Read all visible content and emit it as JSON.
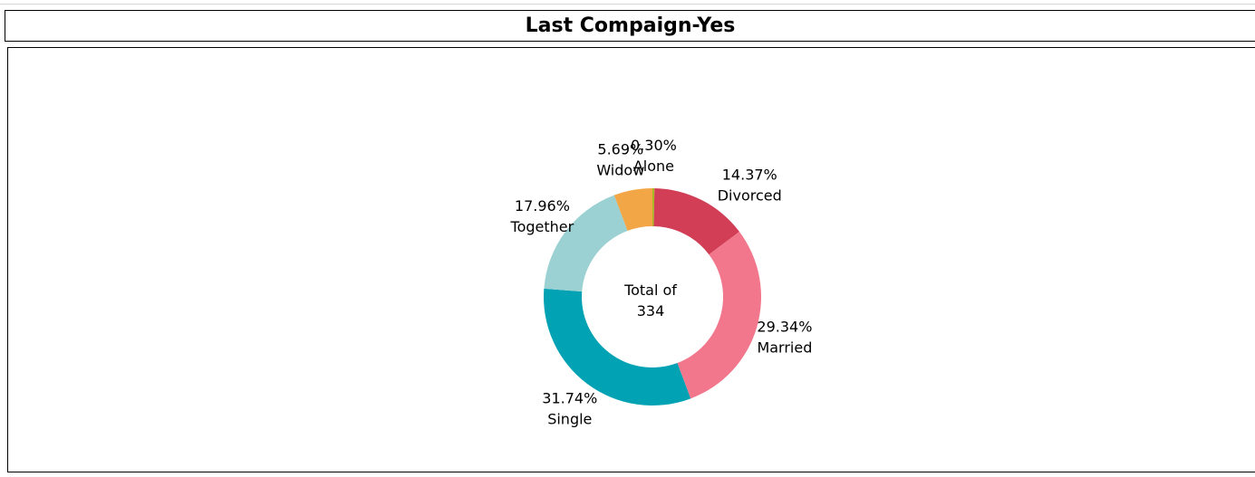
{
  "title": "Last Compaign-Yes",
  "chart_data": {
    "type": "pie",
    "style": "donut",
    "center_label": [
      "Total of",
      "334"
    ],
    "total": 334,
    "slices": [
      {
        "label": "Alone",
        "percent": 0.3,
        "percent_label": "0.30%",
        "color": "#a6b923"
      },
      {
        "label": "Divorced",
        "percent": 14.37,
        "percent_label": "14.37%",
        "color": "#d13e56"
      },
      {
        "label": "Married",
        "percent": 29.34,
        "percent_label": "29.34%",
        "color": "#f2778c"
      },
      {
        "label": "Single",
        "percent": 31.74,
        "percent_label": "31.74%",
        "color": "#00a2b3"
      },
      {
        "label": "Together",
        "percent": 17.96,
        "percent_label": "17.96%",
        "color": "#9bd1d2"
      },
      {
        "label": "Widow",
        "percent": 5.69,
        "percent_label": "5.69%",
        "color": "#f3a646"
      }
    ]
  }
}
